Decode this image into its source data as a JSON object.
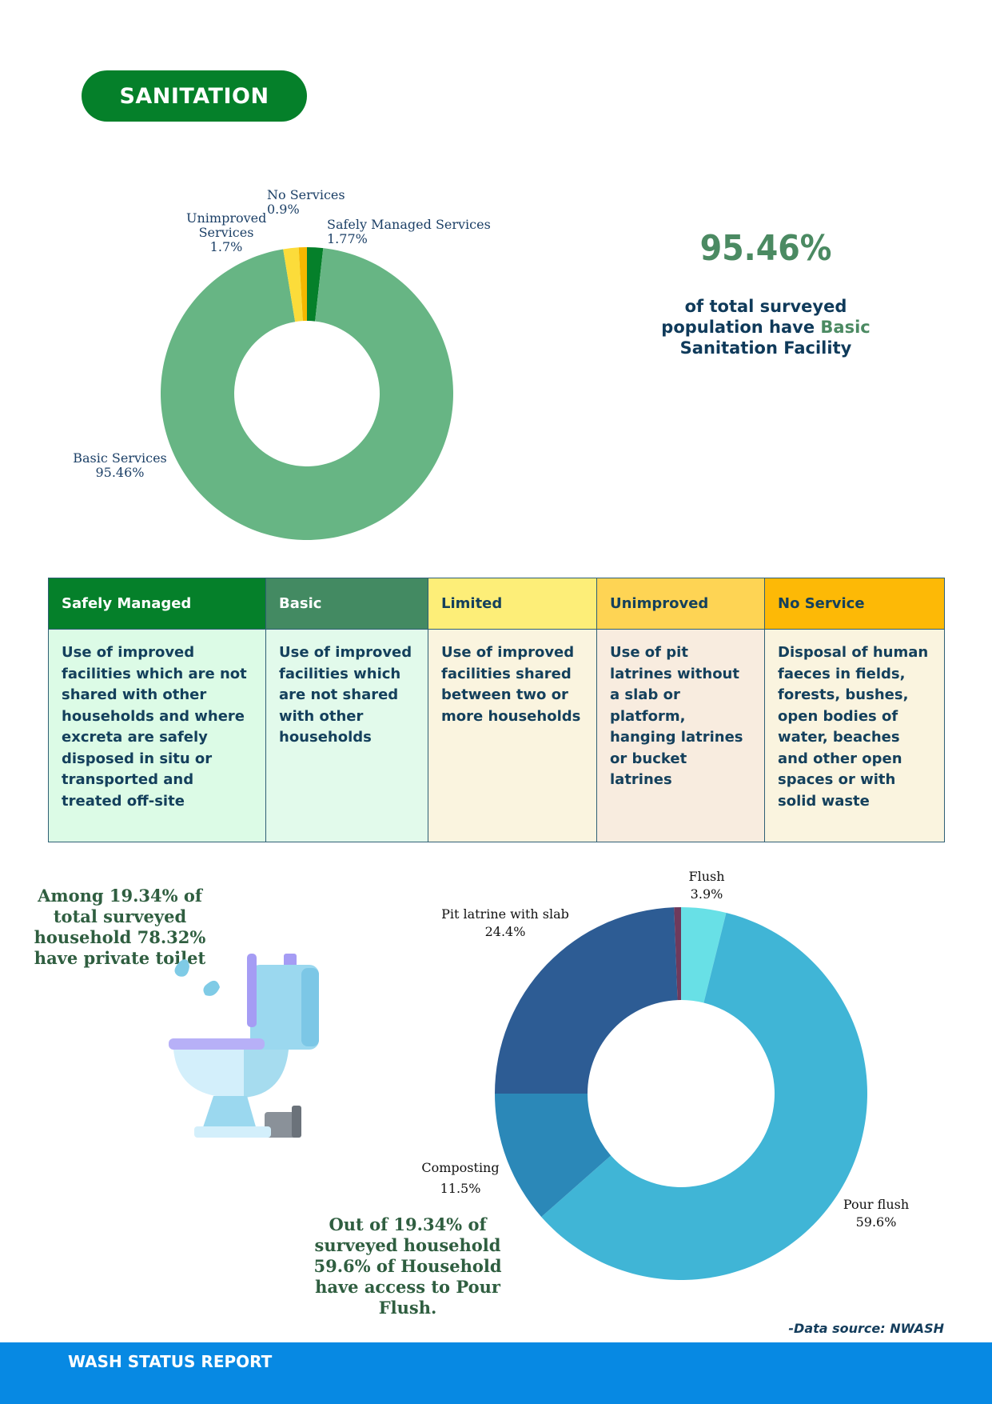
{
  "header": {
    "title": "SANITATION"
  },
  "chart_data": [
    {
      "type": "pie",
      "donut": true,
      "slices": [
        {
          "label": "Safely Managed Services",
          "value": 1.77,
          "display": "1.77%",
          "color": "#05802a"
        },
        {
          "label": "Basic Services",
          "value": 95.46,
          "display": "95.46%",
          "color": "#67b584"
        },
        {
          "label": "Unimproved Services",
          "value": 1.7,
          "display": "1.7%",
          "color": "#fcdc3a"
        },
        {
          "label": "No Services",
          "value": 0.9,
          "display": "0.9%",
          "color": "#f5b800"
        }
      ]
    },
    {
      "type": "pie",
      "donut": true,
      "slices": [
        {
          "label": "Flush",
          "value": 3.9,
          "display": "3.9%",
          "color": "#68e0e6"
        },
        {
          "label": "Pour flush",
          "value": 59.6,
          "display": "59.6%",
          "color": "#40b5d6"
        },
        {
          "label": "Composting",
          "value": 11.5,
          "display": "11.5%",
          "color": "#2b88b8"
        },
        {
          "label": "Pit latrine with slab",
          "value": 24.4,
          "display": "24.4%",
          "color": "#2d5c94"
        },
        {
          "label": "",
          "value": 0.6,
          "display": "",
          "color": "#6e3a5c"
        }
      ]
    }
  ],
  "chart1_labels": {
    "no_services": [
      "No Services",
      "0.9%"
    ],
    "unimproved": [
      "Unimproved",
      "Services",
      "1.7%"
    ],
    "safely": [
      "Safely Managed Services",
      "1.77%"
    ],
    "basic": [
      "Basic Services",
      "95.46%"
    ]
  },
  "stat": {
    "value": "95.46%",
    "line1": "of total surveyed",
    "line2a": "population have ",
    "line2b": "Basic",
    "line3": "Sanitation Facility"
  },
  "table": {
    "columns": [
      {
        "header": "Safely Managed",
        "body": "Use of improved facilities which are not shared with other households and where excreta are safely disposed in situ or transported and treated off-site",
        "header_bg": "#05802a",
        "header_fg": "#ffffff",
        "body_bg": "#dcfbe6"
      },
      {
        "header": "Basic",
        "body": "Use of improved facilities which are not shared with other households",
        "header_bg": "#438a62",
        "header_fg": "#ffffff",
        "body_bg": "#e2faeb"
      },
      {
        "header": "Limited",
        "body": "Use of improved facilities shared between two or more households",
        "header_bg": "#fdee78",
        "header_fg": "#14405c",
        "body_bg": "#faf4df"
      },
      {
        "header": "Unimproved",
        "body": "Use of pit latrines without a slab or platform, hanging latrines or bucket latrines",
        "header_bg": "#fed454",
        "header_fg": "#14405c",
        "body_bg": "#f8ecdf"
      },
      {
        "header": "No Service",
        "body": "Disposal of human faeces in fields, forests, bushes, open bodies of water, beaches and other open spaces or with solid waste",
        "header_bg": "#fdb906",
        "header_fg": "#14405c",
        "body_bg": "#faf4df"
      }
    ]
  },
  "chart2_labels": {
    "flush": [
      "Flush",
      "3.9%"
    ],
    "pit": [
      "Pit latrine with slab",
      "24.4%"
    ],
    "composting": [
      "Composting",
      "11.5%"
    ],
    "pour": [
      "Pour flush",
      "59.6%"
    ]
  },
  "notes": {
    "left": "Among 19.34% of total surveyed household 78.32% have private toilet",
    "bottom": "Out of 19.34% of surveyed household 59.6% of Household have access to Pour Flush."
  },
  "source": "-Data source: NWASH",
  "footer": {
    "title": "WASH STATUS REPORT"
  },
  "icons": {
    "toilet": "toilet-icon"
  }
}
